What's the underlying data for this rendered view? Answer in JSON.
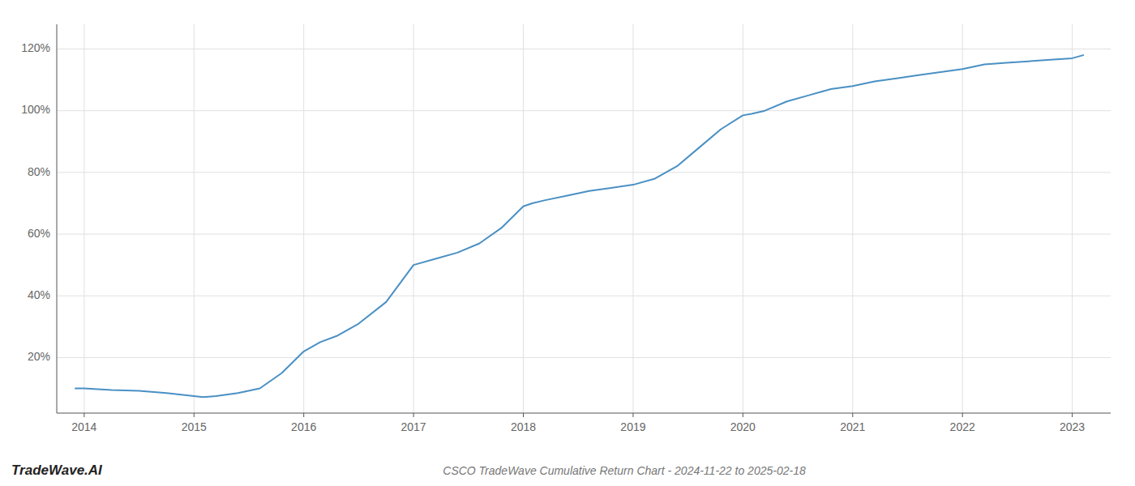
{
  "chart_data": {
    "type": "line",
    "title": "CSCO TradeWave Cumulative Return Chart - 2024-11-22 to 2025-02-18",
    "annotations": [
      "TradeWave.AI"
    ],
    "color": "#4a90c4",
    "grid": true,
    "x": [
      2013.92,
      2014.0,
      2014.25,
      2014.5,
      2014.75,
      2015.0,
      2015.08,
      2015.2,
      2015.4,
      2015.6,
      2015.8,
      2016.0,
      2016.15,
      2016.3,
      2016.5,
      2016.75,
      2017.0,
      2017.2,
      2017.4,
      2017.6,
      2017.8,
      2018.0,
      2018.08,
      2018.2,
      2018.4,
      2018.6,
      2018.8,
      2019.0,
      2019.2,
      2019.4,
      2019.6,
      2019.8,
      2020.0,
      2020.08,
      2020.2,
      2020.4,
      2020.6,
      2020.8,
      2021.0,
      2021.2,
      2021.4,
      2021.6,
      2021.8,
      2022.0,
      2022.2,
      2022.4,
      2022.6,
      2022.8,
      2023.0,
      2023.1
    ],
    "values": [
      10,
      10,
      9.5,
      9.2,
      8.5,
      7.5,
      7.2,
      7.5,
      8.5,
      10,
      15,
      22,
      25,
      27,
      31,
      38,
      50,
      52,
      54,
      57,
      62,
      69,
      70,
      71,
      72.5,
      74,
      75,
      76,
      78,
      82,
      88,
      94,
      98.5,
      99,
      100,
      103,
      105,
      107,
      108,
      109.5,
      110.5,
      111.5,
      112.5,
      113.5,
      115,
      115.5,
      116,
      116.5,
      117,
      118
    ],
    "xlim": [
      2013.75,
      2023.35
    ],
    "ylim": [
      2,
      128
    ],
    "xticks": [
      2014,
      2015,
      2016,
      2017,
      2018,
      2019,
      2020,
      2021,
      2022,
      2023
    ],
    "yticks": [
      {
        "value": 20,
        "label": "20%"
      },
      {
        "value": 40,
        "label": "40%"
      },
      {
        "value": 60,
        "label": "60%"
      },
      {
        "value": 80,
        "label": "80%"
      },
      {
        "value": 100,
        "label": "100%"
      },
      {
        "value": 120,
        "label": "120%"
      }
    ]
  }
}
